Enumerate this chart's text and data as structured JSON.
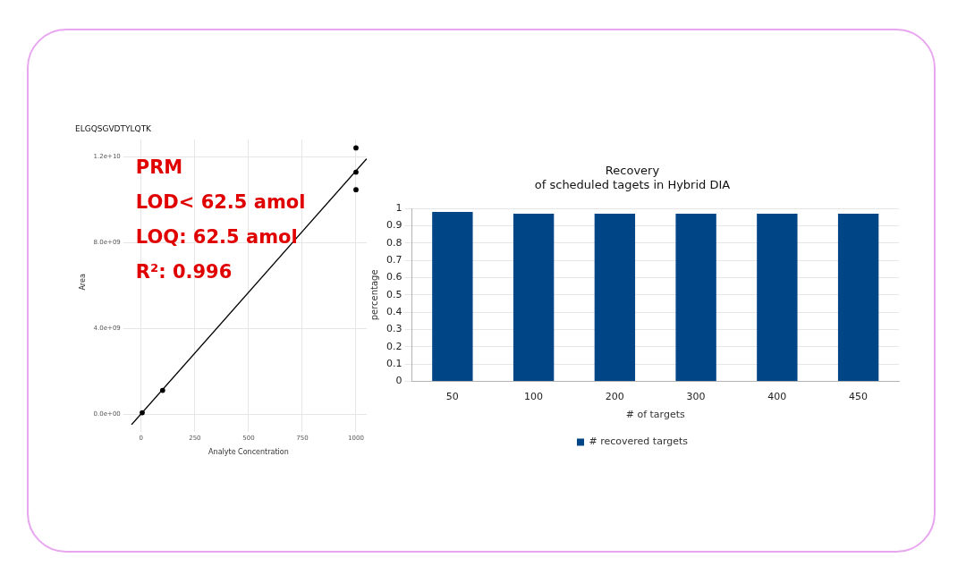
{
  "chart_data": [
    {
      "type": "scatter",
      "title": "ELGQSGVDTYLQTK",
      "xlabel": "Analyte Concentration",
      "ylabel": "Area",
      "series": [
        {
          "type": "scatter",
          "color": "#000000",
          "marker": "circle",
          "x": [
            5,
            100,
            1000,
            1000,
            1000
          ],
          "values": [
            60000000,
            1100000000,
            12400000000,
            11270000000,
            10450000000
          ]
        },
        {
          "type": "line",
          "color": "#000000",
          "marker": "none",
          "x": [
            -45,
            1050
          ],
          "values": [
            -500000000,
            11900000000
          ]
        }
      ],
      "xlim": [
        -50,
        1050
      ],
      "ylim": [
        -500000000,
        12800000000
      ],
      "xticks": [
        0,
        250,
        500,
        750,
        1000
      ],
      "yticks": [
        {
          "value": 0,
          "label": "0.0e+00"
        },
        {
          "value": 4000000000,
          "label": "4.0e+09"
        },
        {
          "value": 8000000000,
          "label": "8.0e+09"
        },
        {
          "value": 12000000000,
          "label": "1.2e+10"
        }
      ],
      "grid": true,
      "annotations": [
        "PRM",
        "LOD< 62.5 amol",
        "LOQ: 62.5 amol",
        "R²: 0.996"
      ]
    },
    {
      "type": "bar",
      "title": "Recovery",
      "subtitle": "of scheduled tagets in Hybrid DIA",
      "xlabel": "# of targets",
      "ylabel": "percentage",
      "categories": [
        "50",
        "100",
        "200",
        "300",
        "400",
        "450"
      ],
      "series": [
        {
          "name": "# recovered targets",
          "color": "#004586",
          "values": [
            0.98,
            0.97,
            0.97,
            0.97,
            0.97,
            0.97
          ]
        }
      ],
      "ylim": [
        0,
        1
      ],
      "yticks": [
        0,
        0.1,
        0.2,
        0.3,
        0.4,
        0.5,
        0.6,
        0.7,
        0.8,
        0.9,
        1
      ],
      "grid": "y",
      "legend": "bottom"
    }
  ]
}
